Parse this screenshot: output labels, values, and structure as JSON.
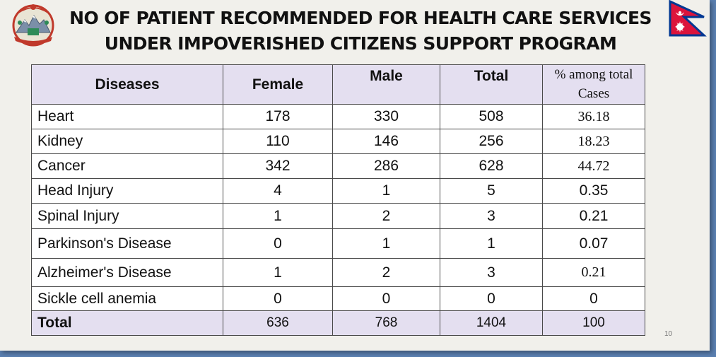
{
  "title": {
    "line1": "NO OF PATIENT RECOMMENDED FOR HEALTH CARE SERVICES",
    "line2": "UNDER IMPOVERISHED CITIZENS SUPPORT PROGRAM"
  },
  "table": {
    "headers": {
      "diseases": "Diseases",
      "female": "Female",
      "male": "Male",
      "total": "Total",
      "pct_line1": "% among total",
      "pct_line2": "Cases"
    },
    "rows": [
      {
        "disease": "Heart",
        "female": "178",
        "male": "330",
        "total": "508",
        "pct": "36.18"
      },
      {
        "disease": "Kidney",
        "female": "110",
        "male": "146",
        "total": "256",
        "pct": "18.23"
      },
      {
        "disease": "Cancer",
        "female": "342",
        "male": "286",
        "total": "628",
        "pct": "44.72"
      },
      {
        "disease": "Head Injury",
        "female": "4",
        "male": "1",
        "total": "5",
        "pct": "0.35"
      },
      {
        "disease": "Spinal Injury",
        "female": "1",
        "male": "2",
        "total": "3",
        "pct": "0.21"
      },
      {
        "disease": "Parkinson's Disease",
        "female": "0",
        "male": "1",
        "total": "1",
        "pct": "0.07"
      },
      {
        "disease": "Alzheimer's Disease",
        "female": "1",
        "male": "2",
        "total": "3",
        "pct": "0.21"
      },
      {
        "disease": "Sickle cell anemia",
        "female": "0",
        "male": "0",
        "total": "0",
        "pct": "0"
      }
    ],
    "total_row": {
      "label": "Total",
      "female": "636",
      "male": "768",
      "total": "1404",
      "pct": "100"
    }
  },
  "page_number": "10",
  "icons": {
    "left": "government-emblem-icon",
    "right": "nepal-flag-icon"
  },
  "colors": {
    "header_bg": "#e4dff0",
    "slide_bg": "#f1f0eb",
    "frame": "#5a7fb0",
    "flag_red": "#dc143c",
    "flag_blue": "#003893"
  }
}
